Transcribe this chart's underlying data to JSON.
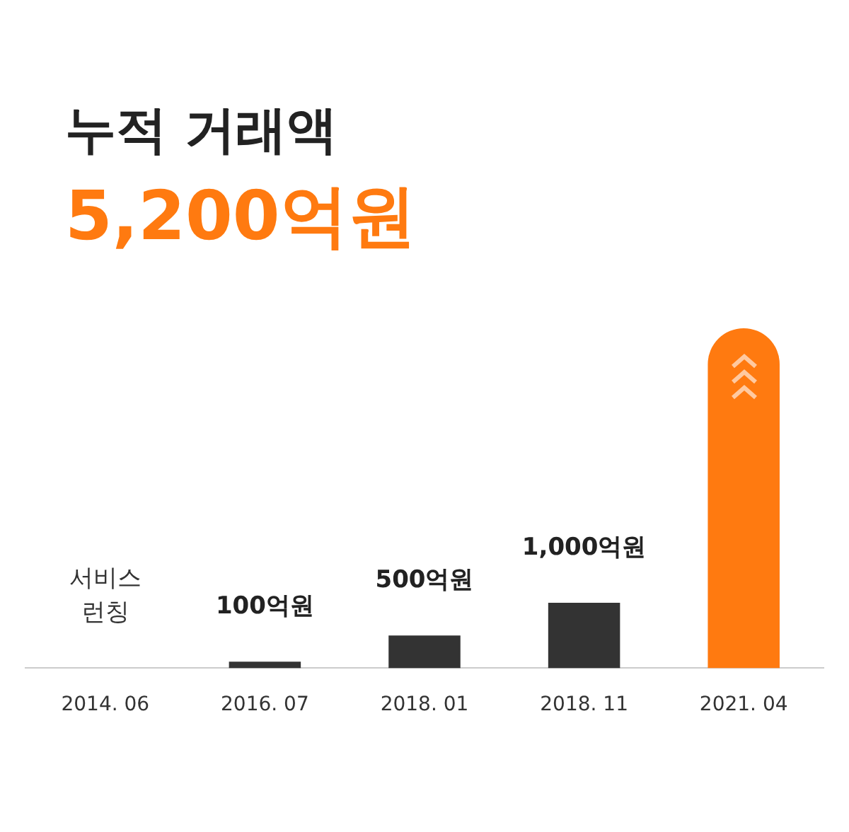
{
  "chart_data": {
    "type": "bar",
    "title": "누적 거래액",
    "subtitle": "5,200억원",
    "categories": [
      "2014. 06",
      "2016. 07",
      "2018. 01",
      "2018. 11",
      "2021. 04"
    ],
    "values": [
      0,
      100,
      500,
      1000,
      5200
    ],
    "colors": [
      "#333333",
      "#333333",
      "#333333",
      "#333333",
      "#ff7a10"
    ],
    "value_labels": [
      "서비스 런칭",
      "100억원",
      "500억원",
      "1,000억원",
      null
    ],
    "grid": false,
    "legend": false
  }
}
